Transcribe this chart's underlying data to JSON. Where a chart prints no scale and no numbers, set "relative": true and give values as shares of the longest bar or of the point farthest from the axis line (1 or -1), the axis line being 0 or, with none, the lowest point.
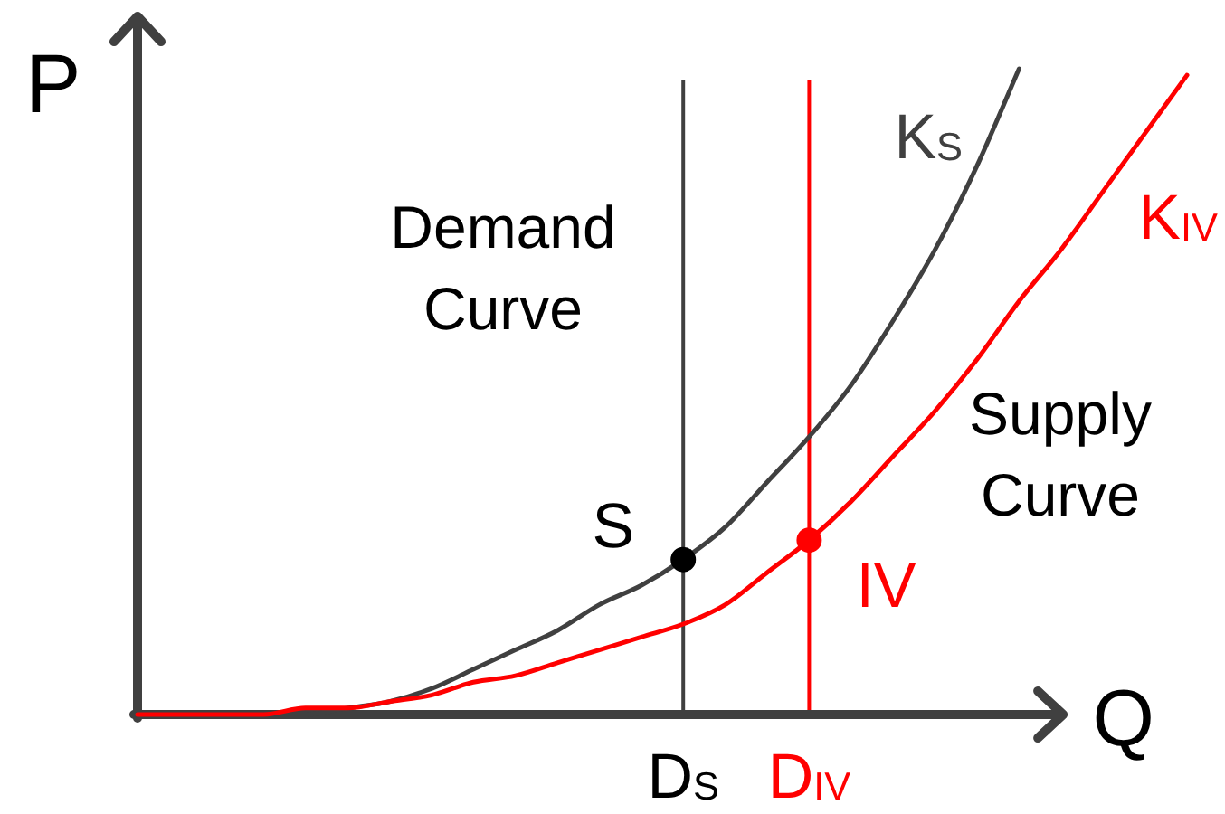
{
  "chart_data": {
    "type": "line",
    "xlabel": "Q",
    "ylabel": "P",
    "relative": true,
    "marker": "none",
    "categories": [
      null,
      null,
      null,
      null,
      null,
      null,
      null,
      null,
      null,
      null,
      null,
      null,
      null,
      "D$_{S}$",
      null,
      null,
      "D$_{IV}$",
      null,
      null,
      null,
      null,
      null,
      null,
      null,
      null,
      null
    ],
    "series": [
      {
        "name": "K$_{S}$",
        "color": "#404040",
        "values": [
          0,
          0,
          0,
          0,
          0,
          0.01,
          0.02,
          0.04,
          0.07,
          0.1,
          0.13,
          0.17,
          0.2,
          0.24,
          0.29,
          0.36,
          0.43,
          0.51,
          0.61,
          0.72,
          0.85,
          1,
          null,
          null,
          null,
          null
        ]
      },
      {
        "name": "K$_{IV}$",
        "color": "#ff0000",
        "values": [
          0,
          0,
          0,
          0,
          0.01,
          0.01,
          0.02,
          0.03,
          0.05,
          0.06,
          0.08,
          0.1,
          0.12,
          0.14,
          0.17,
          0.22,
          0.27,
          0.33,
          0.4,
          0.47,
          0.55,
          0.64,
          0.72,
          0.81,
          0.9,
          0.99
        ]
      },
      {
        "name": "S",
        "type": "scatter",
        "marker": "circle",
        "color": "#000000",
        "values": [
          null,
          null,
          null,
          null,
          null,
          null,
          null,
          null,
          null,
          null,
          null,
          null,
          null,
          0.24,
          null,
          null,
          null,
          null,
          null,
          null,
          null,
          null,
          null,
          null,
          null,
          null
        ]
      },
      {
        "name": "IV",
        "type": "scatter",
        "marker": "circle",
        "color": "#ff0000",
        "values": [
          null,
          null,
          null,
          null,
          null,
          null,
          null,
          null,
          null,
          null,
          null,
          null,
          null,
          null,
          null,
          null,
          0.27,
          null,
          null,
          null,
          null,
          null,
          null,
          null,
          null,
          null
        ]
      }
    ],
    "ref_lines": [
      {
        "axis": "x",
        "value": "D$_{S}$",
        "color": "#404040"
      },
      {
        "axis": "x",
        "value": "D$_{IV}$",
        "color": "#ff0000"
      }
    ],
    "annotations": [
      "Demand Curve",
      "Supply Curve"
    ]
  }
}
